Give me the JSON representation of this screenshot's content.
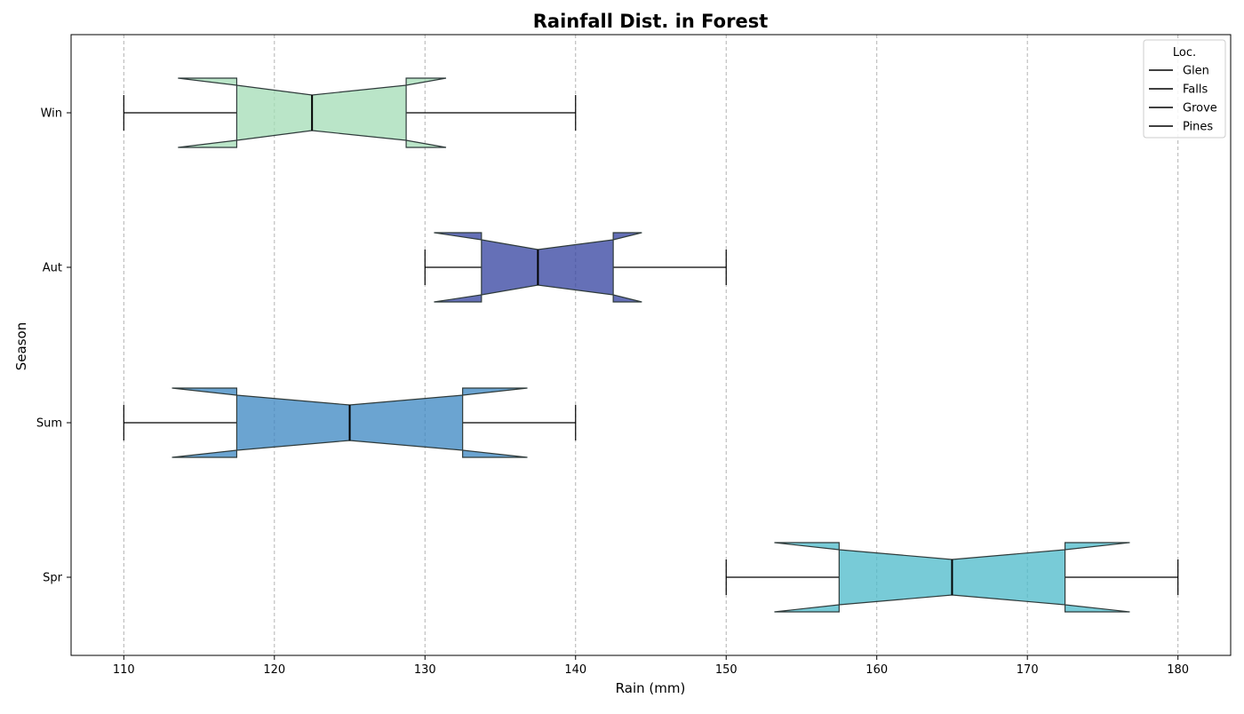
{
  "chart_data": {
    "type": "boxplot",
    "orientation": "horizontal",
    "notched": true,
    "title": "Rainfall Dist. in Forest",
    "xlabel": "Rain (mm)",
    "ylabel": "Season",
    "xlim": [
      106.5,
      183.5
    ],
    "xticks": [
      110,
      120,
      130,
      140,
      150,
      160,
      170,
      180
    ],
    "grid": "x, dashed",
    "legend": {
      "title": "Loc.",
      "placement": "top-right",
      "entries": [
        "Glen",
        "Falls",
        "Grove",
        "Pines"
      ]
    },
    "categories": [
      "Spr",
      "Sum",
      "Aut",
      "Win"
    ],
    "boxes": [
      {
        "category": "Spr",
        "whisker_low": 150,
        "q1": 157.5,
        "notch_low": 153.2,
        "median": 165,
        "notch_high": 176.8,
        "q3": 172.5,
        "whisker_high": 180,
        "color": "#4bbac9"
      },
      {
        "category": "Sum",
        "whisker_low": 110,
        "q1": 117.5,
        "notch_low": 113.2,
        "median": 125,
        "notch_high": 136.8,
        "q3": 132.5,
        "whisker_high": 140,
        "color": "#3a86c2"
      },
      {
        "category": "Aut",
        "whisker_low": 130,
        "q1": 133.75,
        "notch_low": 130.6,
        "median": 137.5,
        "notch_high": 144.4,
        "q3": 142.5,
        "whisker_high": 150,
        "color": "#32409f"
      },
      {
        "category": "Win",
        "whisker_low": 110,
        "q1": 117.5,
        "notch_low": 113.6,
        "median": 122.5,
        "notch_high": 131.4,
        "q3": 128.75,
        "whisker_high": 140,
        "color": "#a3dcb6"
      }
    ]
  }
}
